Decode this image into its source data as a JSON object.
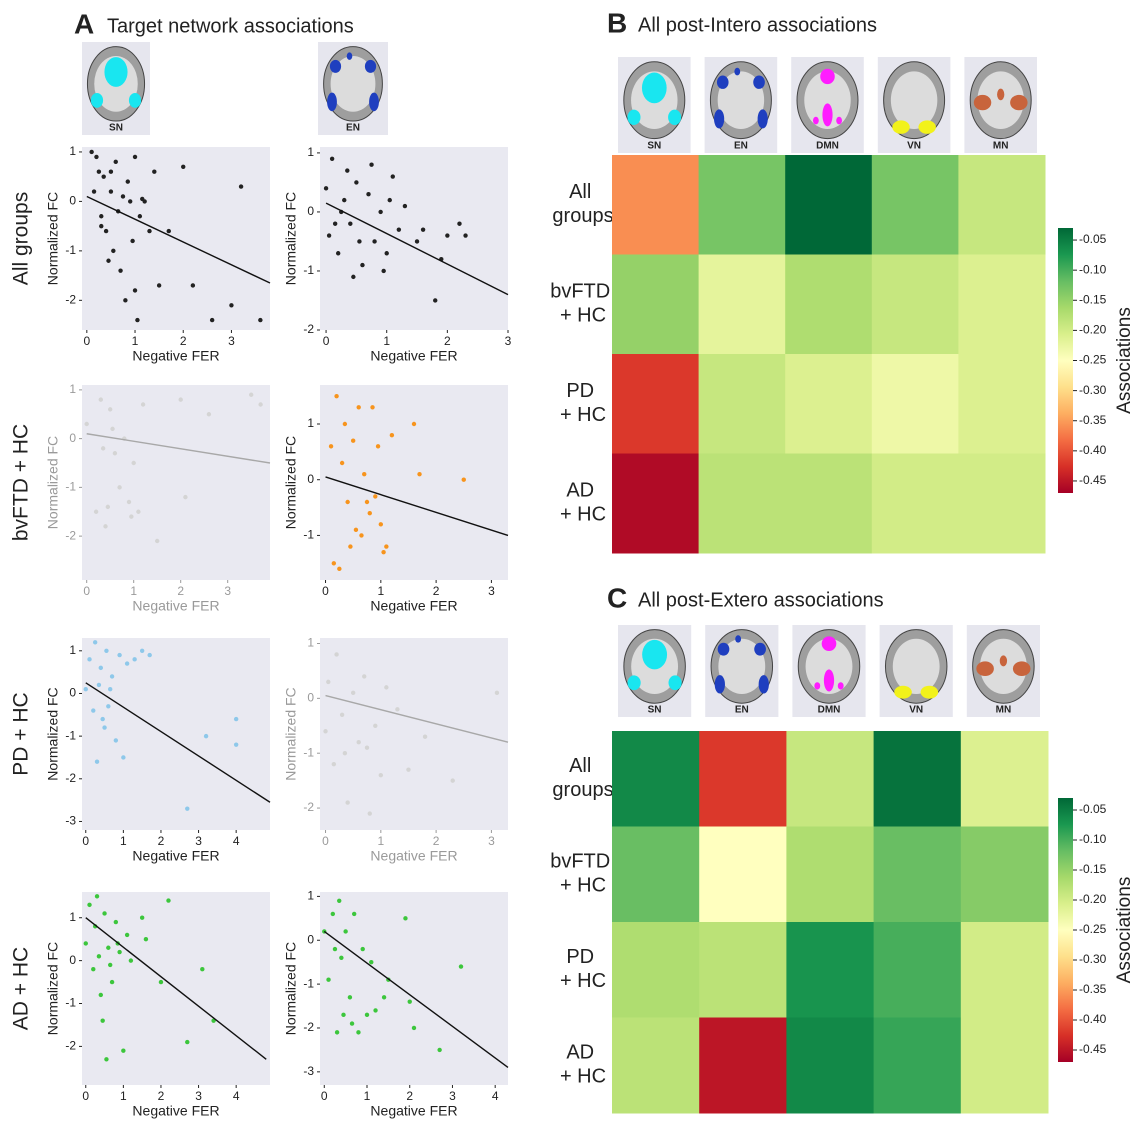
{
  "panel_a": {
    "letter": "A",
    "title": "Target network associations",
    "networks": [
      "SN",
      "EN"
    ],
    "rows": [
      "All groups",
      "bvFTD + HC",
      "PD + HC",
      "AD + HC"
    ]
  },
  "chart_data": [
    {
      "type": "scatter",
      "xlabel": "Negative FER",
      "ylabel": "Normalized FC",
      "color": "#222222",
      "text_color": "#222222",
      "fit_color": "#111111",
      "xlim": [
        -0.1,
        3.8
      ],
      "xticks": [
        0,
        1,
        2,
        3
      ],
      "ylim": [
        -2.6,
        1.1
      ],
      "yticks": [
        -2,
        -1,
        0,
        1
      ],
      "x": [
        0.1,
        0.2,
        0.25,
        0.3,
        0.35,
        0.4,
        0.5,
        0.55,
        0.6,
        0.7,
        0.75,
        0.8,
        0.9,
        1.0,
        1.05,
        1.1,
        1.2,
        1.3,
        1.4,
        1.5,
        1.7,
        2.0,
        2.2,
        2.6,
        3.0,
        3.2,
        3.6,
        0.15,
        0.45,
        0.65,
        0.85,
        0.95,
        1.15,
        1.0,
        0.5,
        0.3
      ],
      "y": [
        1.0,
        0.9,
        0.6,
        -0.3,
        0.5,
        -0.6,
        0.2,
        -1.0,
        0.8,
        -1.4,
        0.1,
        -2.0,
        0.0,
        0.9,
        -2.4,
        -0.3,
        0.0,
        -0.6,
        0.6,
        -1.7,
        -0.6,
        0.7,
        -1.7,
        -2.4,
        -2.1,
        0.3,
        -2.4,
        0.2,
        -1.2,
        -0.2,
        0.4,
        -0.8,
        0.05,
        -1.8,
        0.6,
        -0.5
      ],
      "fit": {
        "x": [
          0,
          3.8
        ],
        "y": [
          0.1,
          -1.65
        ]
      }
    },
    {
      "type": "scatter",
      "xlabel": "Negative FER",
      "ylabel": "Normalized FC",
      "color": "#222222",
      "text_color": "#222222",
      "fit_color": "#111111",
      "xlim": [
        -0.1,
        3
      ],
      "xticks": [
        0,
        1,
        2,
        3
      ],
      "ylim": [
        -2,
        1.1
      ],
      "yticks": [
        -2,
        -1,
        0,
        1
      ],
      "x": [
        0,
        0.05,
        0.1,
        0.2,
        0.3,
        0.4,
        0.5,
        0.6,
        0.7,
        0.8,
        0.9,
        1.0,
        1.1,
        1.2,
        1.3,
        1.5,
        1.6,
        1.8,
        1.9,
        2.0,
        2.2,
        2.3,
        0.15,
        0.35,
        0.55,
        0.75,
        0.95,
        1.05,
        0.25,
        0.45
      ],
      "y": [
        0.4,
        -0.4,
        0.9,
        -0.7,
        0.2,
        -0.2,
        0.5,
        -0.9,
        0.3,
        -0.5,
        0.0,
        -0.7,
        0.6,
        -0.3,
        0.1,
        -0.5,
        -0.3,
        -1.5,
        -0.8,
        -0.4,
        -0.2,
        -0.4,
        -0.2,
        0.7,
        -0.5,
        0.8,
        -1.0,
        0.2,
        0.0,
        -1.1
      ],
      "fit": {
        "x": [
          0,
          3
        ],
        "y": [
          0.15,
          -1.4
        ]
      }
    },
    {
      "type": "scatter",
      "xlabel": "Negative FER",
      "ylabel": "Normalized FC",
      "color": "#d4d4d4",
      "text_color": "#9a9a9a",
      "fit_color": "#a8a8a8",
      "xlim": [
        -0.1,
        3.9
      ],
      "xticks": [
        0,
        1,
        2,
        3
      ],
      "ylim": [
        -2.9,
        1.1
      ],
      "yticks": [
        -2,
        -1,
        0,
        1
      ],
      "x": [
        0,
        0.2,
        0.3,
        0.4,
        0.5,
        0.6,
        0.7,
        0.8,
        0.9,
        1.0,
        1.1,
        1.2,
        1.5,
        2.0,
        2.1,
        2.6,
        3.5,
        3.7,
        0.35,
        0.55,
        0.45,
        0.95
      ],
      "y": [
        0.3,
        -1.5,
        0.8,
        -1.8,
        0.6,
        -0.3,
        -1.0,
        0.0,
        -1.3,
        -0.5,
        -1.5,
        0.7,
        -2.1,
        0.8,
        -1.2,
        0.5,
        0.9,
        0.7,
        -0.2,
        0.2,
        -1.4,
        -1.6
      ],
      "fit": {
        "x": [
          0,
          3.9
        ],
        "y": [
          0.1,
          -0.5
        ]
      }
    },
    {
      "type": "scatter",
      "xlabel": "Negative FER",
      "ylabel": "Normalized FC",
      "color": "#f7941d",
      "text_color": "#222222",
      "fit_color": "#111111",
      "xlim": [
        -0.1,
        3.3
      ],
      "xticks": [
        0,
        1,
        2,
        3
      ],
      "ylim": [
        -1.8,
        1.7
      ],
      "yticks": [
        -1,
        0,
        1
      ],
      "x": [
        0.1,
        0.15,
        0.2,
        0.25,
        0.3,
        0.35,
        0.4,
        0.5,
        0.55,
        0.6,
        0.65,
        0.7,
        0.8,
        0.85,
        0.9,
        0.95,
        1.0,
        1.05,
        1.1,
        1.2,
        1.6,
        1.7,
        2.5,
        0.45,
        0.75
      ],
      "y": [
        0.6,
        -1.5,
        1.5,
        -1.6,
        0.3,
        1.0,
        -0.4,
        0.7,
        -0.9,
        1.3,
        -1.0,
        0.1,
        -0.6,
        1.3,
        -0.3,
        0.6,
        -0.8,
        -1.3,
        -1.2,
        0.8,
        1.0,
        0.1,
        0.0,
        -1.2,
        -0.4
      ],
      "fit": {
        "x": [
          0,
          3.3
        ],
        "y": [
          0.05,
          -1.0
        ]
      }
    },
    {
      "type": "scatter",
      "xlabel": "Negative FER",
      "ylabel": "Normalized FC",
      "color": "#8ec8ea",
      "text_color": "#222222",
      "fit_color": "#111111",
      "xlim": [
        -0.1,
        4.9
      ],
      "xticks": [
        0,
        1,
        2,
        3,
        4
      ],
      "ylim": [
        -3.2,
        1.3
      ],
      "yticks": [
        -3,
        -2,
        -1,
        0,
        1
      ],
      "x": [
        0,
        0.1,
        0.2,
        0.25,
        0.3,
        0.4,
        0.5,
        0.55,
        0.6,
        0.7,
        0.8,
        0.9,
        1.0,
        1.1,
        1.3,
        1.5,
        1.7,
        2.7,
        3.2,
        4.0,
        4.0,
        0.35,
        0.45,
        0.65
      ],
      "y": [
        0.1,
        0.8,
        -0.4,
        1.2,
        -1.6,
        0.6,
        -0.8,
        1.0,
        -0.3,
        0.4,
        -1.1,
        0.9,
        -1.5,
        0.7,
        0.8,
        1.0,
        0.9,
        -2.7,
        -1.0,
        -0.6,
        -1.2,
        0.2,
        -0.6,
        0.1
      ],
      "fit": {
        "x": [
          0,
          4.9
        ],
        "y": [
          0.25,
          -2.55
        ]
      }
    },
    {
      "type": "scatter",
      "xlabel": "Negative FER",
      "ylabel": "Normalized FC",
      "color": "#d4d4d4",
      "text_color": "#9a9a9a",
      "fit_color": "#a8a8a8",
      "xlim": [
        -0.1,
        3.3
      ],
      "xticks": [
        0,
        1,
        2,
        3
      ],
      "ylim": [
        -2.4,
        1.1
      ],
      "yticks": [
        -2,
        -1,
        0,
        1
      ],
      "x": [
        0,
        0.05,
        0.15,
        0.2,
        0.3,
        0.4,
        0.5,
        0.6,
        0.7,
        0.8,
        0.9,
        1.0,
        1.1,
        1.3,
        1.5,
        1.8,
        2.3,
        3.1,
        0.35,
        0.75
      ],
      "y": [
        -0.6,
        0.3,
        -1.2,
        0.8,
        -0.3,
        -1.9,
        0.1,
        -0.8,
        0.4,
        -2.1,
        -0.5,
        -1.4,
        0.2,
        -0.2,
        -1.3,
        -0.7,
        -1.5,
        0.1,
        -1.0,
        -0.9
      ],
      "fit": {
        "x": [
          0,
          3.3
        ],
        "y": [
          0.05,
          -0.8
        ]
      }
    },
    {
      "type": "scatter",
      "xlabel": "Negative FER",
      "ylabel": "Normalized FC",
      "color": "#3cc63c",
      "text_color": "#222222",
      "fit_color": "#111111",
      "xlim": [
        -0.1,
        4.9
      ],
      "xticks": [
        0,
        1,
        2,
        3,
        4
      ],
      "ylim": [
        -2.9,
        1.6
      ],
      "yticks": [
        -2,
        -1,
        0,
        1
      ],
      "x": [
        0,
        0.1,
        0.2,
        0.3,
        0.35,
        0.4,
        0.5,
        0.55,
        0.6,
        0.7,
        0.8,
        0.9,
        1.0,
        1.1,
        1.2,
        1.5,
        1.6,
        2.0,
        2.2,
        2.7,
        3.1,
        3.4,
        0.25,
        0.45,
        0.65,
        0.85
      ],
      "y": [
        0.4,
        1.3,
        -0.2,
        1.5,
        0.1,
        -0.8,
        1.1,
        -2.3,
        0.3,
        -0.5,
        0.9,
        0.2,
        -2.1,
        0.6,
        0.0,
        1.0,
        0.5,
        -0.5,
        1.4,
        -1.9,
        -0.2,
        -1.4,
        0.8,
        -1.4,
        -0.1,
        0.4
      ],
      "fit": {
        "x": [
          0,
          4.8
        ],
        "y": [
          1.0,
          -2.3
        ]
      }
    },
    {
      "type": "scatter",
      "xlabel": "Negative FER",
      "ylabel": "Normalized FC",
      "color": "#3cc63c",
      "text_color": "#222222",
      "fit_color": "#111111",
      "xlim": [
        -0.1,
        4.3
      ],
      "xticks": [
        0,
        1,
        2,
        3,
        4
      ],
      "ylim": [
        -3.3,
        1.1
      ],
      "yticks": [
        -3,
        -2,
        -1,
        0,
        1
      ],
      "x": [
        0,
        0.1,
        0.2,
        0.3,
        0.35,
        0.4,
        0.5,
        0.6,
        0.7,
        0.8,
        0.9,
        1.0,
        1.1,
        1.2,
        1.4,
        1.5,
        1.9,
        2.0,
        2.1,
        2.7,
        3.2,
        0.25,
        0.45,
        0.65
      ],
      "y": [
        0.2,
        -0.9,
        0.6,
        -2.1,
        0.9,
        -0.4,
        0.2,
        -1.3,
        0.6,
        -2.1,
        -0.2,
        -1.7,
        -0.5,
        -1.6,
        -1.3,
        -0.9,
        0.5,
        -1.4,
        -2.0,
        -2.5,
        -0.6,
        -0.2,
        -1.7,
        -1.9
      ],
      "fit": {
        "x": [
          0,
          4.3
        ],
        "y": [
          0.2,
          -2.9
        ]
      }
    },
    {
      "type": "heatmap",
      "panel_letter": "B",
      "title": "All post-Intero associations",
      "x_categories": [
        "SN",
        "EN",
        "DMN",
        "VN",
        "MN"
      ],
      "y_categories": [
        "All groups",
        "bvFTD + HC",
        "PD + HC",
        "AD + HC"
      ],
      "values": [
        [
          -0.36,
          -0.13,
          -0.03,
          -0.13,
          -0.19
        ],
        [
          -0.15,
          -0.22,
          -0.17,
          -0.19,
          -0.21
        ],
        [
          -0.42,
          -0.19,
          -0.21,
          -0.23,
          -0.21
        ],
        [
          -0.46,
          -0.18,
          -0.18,
          -0.2,
          -0.2
        ]
      ],
      "colorbar": {
        "label": "Associations",
        "lim": [
          -0.03,
          -0.47
        ],
        "colors": [
          "#a50026",
          "#d73027",
          "#f46d43",
          "#fdae61",
          "#fee08b",
          "#ffffbf",
          "#d9ef8b",
          "#a6d96a",
          "#66bd63",
          "#1a9850",
          "#006837"
        ],
        "ticks": [
          -0.05,
          {
            "value": -0.1,
            "label": "-0.10"
          },
          -0.15,
          {
            "value": -0.2,
            "label": "-0.20"
          },
          -0.25,
          {
            "value": -0.3,
            "label": "-0.30"
          },
          -0.35,
          {
            "value": -0.4,
            "label": "-0.40"
          },
          -0.45
        ]
      }
    },
    {
      "type": "heatmap",
      "panel_letter": "C",
      "title": "All post-Extero associations",
      "x_categories": [
        "SN",
        "EN",
        "DMN",
        "VN",
        "MN"
      ],
      "y_categories": [
        "All groups",
        "bvFTD + HC",
        "PD + HC",
        "AD + HC"
      ],
      "values": [
        [
          -0.06,
          -0.42,
          -0.19,
          -0.04,
          -0.21
        ],
        [
          -0.12,
          -0.25,
          -0.17,
          -0.12,
          -0.14
        ],
        [
          -0.17,
          -0.18,
          -0.07,
          -0.1,
          -0.2
        ],
        [
          -0.18,
          -0.45,
          -0.06,
          -0.09,
          -0.2
        ]
      ],
      "colorbar": {
        "label": "Associations",
        "lim": [
          -0.03,
          -0.47
        ],
        "colors": [
          "#a50026",
          "#d73027",
          "#f46d43",
          "#fdae61",
          "#fee08b",
          "#ffffbf",
          "#d9ef8b",
          "#a6d96a",
          "#66bd63",
          "#1a9850",
          "#006837"
        ],
        "ticks": [
          -0.05,
          {
            "value": -0.1,
            "label": "-0.10"
          },
          -0.15,
          {
            "value": -0.2,
            "label": "-0.20"
          },
          -0.25,
          {
            "value": -0.3,
            "label": "-0.30"
          },
          -0.35,
          {
            "value": -0.4,
            "label": "-0.40"
          },
          -0.45
        ]
      }
    }
  ]
}
